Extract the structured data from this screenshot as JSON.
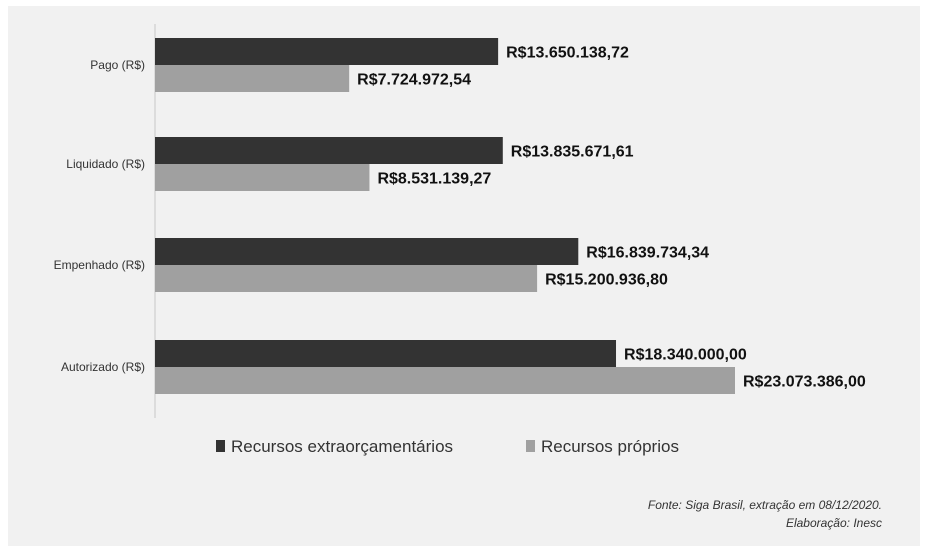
{
  "chart_data": {
    "type": "bar",
    "orientation": "horizontal",
    "categories": [
      "Pago (R$)",
      "Liquidado (R$)",
      "Empenhado (R$)",
      "Autorizado (R$)"
    ],
    "series": [
      {
        "name": "Recursos extraorçamentários",
        "color": "#333333",
        "values": [
          13650138.72,
          13835671.61,
          16839734.34,
          18340000.0
        ],
        "labels": [
          "R$13.650.138,72",
          "R$13.835.671,61",
          "R$16.839.734,34",
          "R$18.340.000,00"
        ]
      },
      {
        "name": "Recursos próprios",
        "color": "#a0a0a0",
        "values": [
          7724972.54,
          8531139.27,
          15200936.8,
          23073386.0
        ],
        "labels": [
          "R$7.724.972,54",
          "R$8.531.139,27",
          "R$15.200.936,80",
          "R$23.073.386,00"
        ]
      }
    ],
    "xlim": [
      0,
      23073386
    ],
    "legend_position": "bottom",
    "grid": false
  },
  "footer": {
    "source": "Fonte: Siga Brasil, extração em 08/12/2020.",
    "credit": "Elaboração: Inesc"
  }
}
